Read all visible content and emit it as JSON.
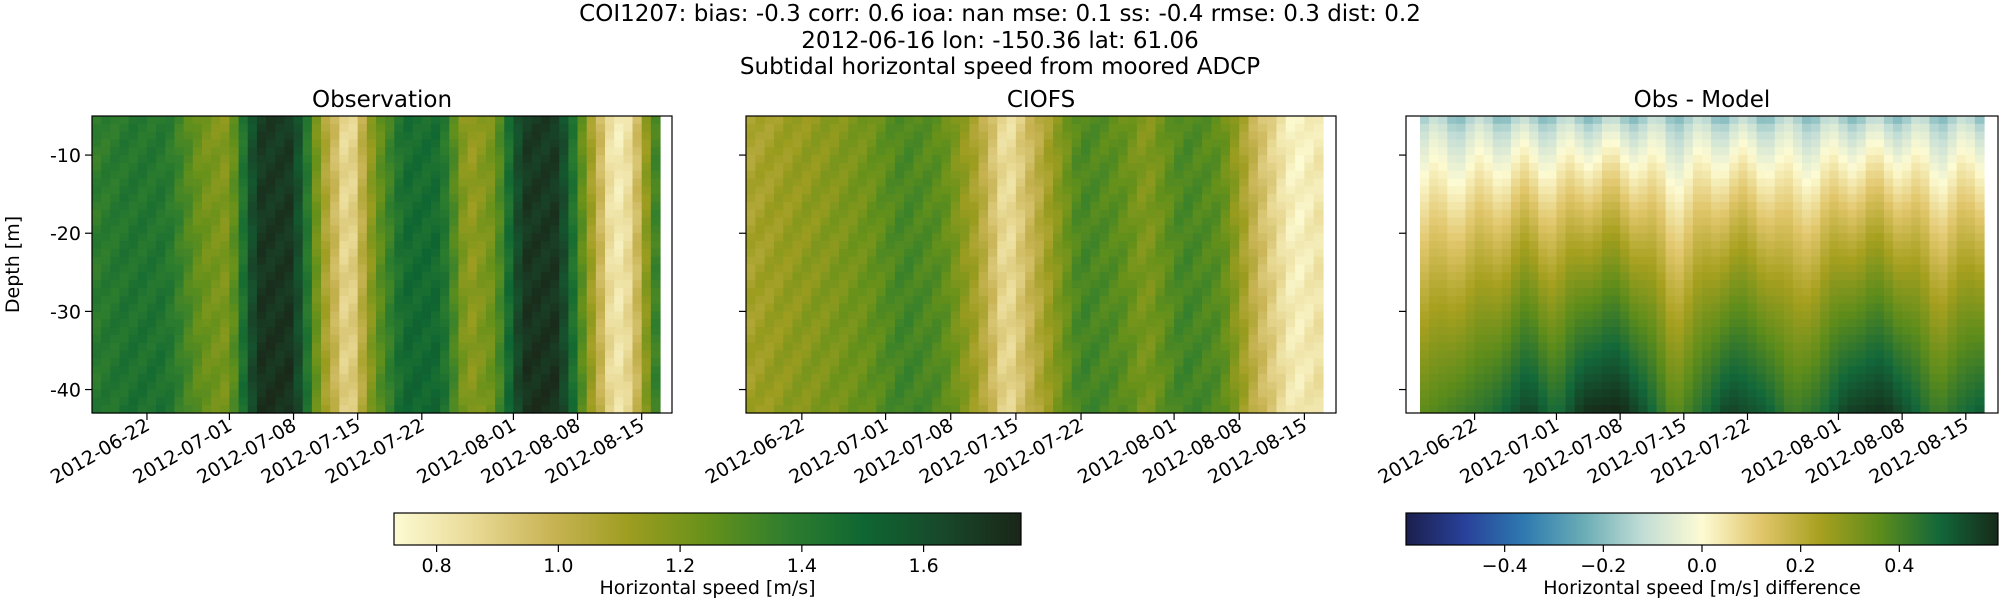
{
  "figure": {
    "title_line1": "COI1207: bias: -0.3  corr: 0.6  ioa: nan  mse: 0.1  ss: -0.4  rmse: 0.3  dist: 0.2",
    "title_line2": "2012-06-16 lon: -150.36 lat: 61.06",
    "title_line3": "Subtidal horizontal speed from moored ADCP"
  },
  "chart_data": [
    {
      "type": "heatmap",
      "title": "Observation",
      "ylabel": "Depth [m]",
      "xlabel": "",
      "y_range": [
        -43,
        -5
      ],
      "y_ticks": [
        -10,
        -20,
        -30,
        -40
      ],
      "x_range": [
        "2012-06-16",
        "2012-08-17"
      ],
      "x_ticks": [
        "2012-06-22",
        "2012-07-01",
        "2012-07-08",
        "2012-07-15",
        "2012-07-22",
        "2012-08-01",
        "2012-08-08",
        "2012-08-15"
      ],
      "colormap": "speed",
      "colorbar": "shared-speed",
      "value_range": [
        0.73,
        1.76
      ],
      "speed_profile_by_date": [
        [
          "2012-06-16",
          1.4
        ],
        [
          "2012-06-20",
          1.45
        ],
        [
          "2012-06-24",
          1.45
        ],
        [
          "2012-06-28",
          1.25
        ],
        [
          "2012-07-01",
          1.2
        ],
        [
          "2012-07-04",
          1.72
        ],
        [
          "2012-07-08",
          1.72
        ],
        [
          "2012-07-11",
          1.15
        ],
        [
          "2012-07-14",
          0.85
        ],
        [
          "2012-07-17",
          1.25
        ],
        [
          "2012-07-20",
          1.5
        ],
        [
          "2012-07-24",
          1.5
        ],
        [
          "2012-07-27",
          1.15
        ],
        [
          "2012-07-30",
          1.25
        ],
        [
          "2012-08-02",
          1.72
        ],
        [
          "2012-08-06",
          1.72
        ],
        [
          "2012-08-09",
          1.2
        ],
        [
          "2012-08-12",
          0.8
        ],
        [
          "2012-08-14",
          0.9
        ],
        [
          "2012-08-17",
          1.45
        ]
      ]
    },
    {
      "type": "heatmap",
      "title": "CIOFS",
      "xlabel": "",
      "ylabel": "",
      "y_range": [
        -43,
        -5
      ],
      "x_range": [
        "2012-06-16",
        "2012-08-17"
      ],
      "x_ticks": [
        "2012-06-22",
        "2012-07-01",
        "2012-07-08",
        "2012-07-15",
        "2012-07-22",
        "2012-08-01",
        "2012-08-08",
        "2012-08-15"
      ],
      "colormap": "speed",
      "colorbar": "shared-speed",
      "value_range": [
        0.73,
        1.76
      ],
      "speed_profile_by_date": [
        [
          "2012-06-16",
          1.1
        ],
        [
          "2012-06-20",
          1.15
        ],
        [
          "2012-06-25",
          1.2
        ],
        [
          "2012-06-29",
          1.25
        ],
        [
          "2012-07-03",
          1.35
        ],
        [
          "2012-07-07",
          1.3
        ],
        [
          "2012-07-11",
          1.1
        ],
        [
          "2012-07-14",
          0.85
        ],
        [
          "2012-07-18",
          1.1
        ],
        [
          "2012-07-22",
          1.35
        ],
        [
          "2012-07-26",
          1.3
        ],
        [
          "2012-07-29",
          1.2
        ],
        [
          "2012-08-02",
          1.35
        ],
        [
          "2012-08-06",
          1.3
        ],
        [
          "2012-08-10",
          1.0
        ],
        [
          "2012-08-14",
          0.78
        ],
        [
          "2012-08-17",
          0.85
        ]
      ]
    },
    {
      "type": "heatmap",
      "title": "Obs - Model",
      "xlabel": "",
      "ylabel": "",
      "y_range": [
        -43,
        -5
      ],
      "x_range": [
        "2012-06-16",
        "2012-08-17"
      ],
      "x_ticks": [
        "2012-06-22",
        "2012-07-01",
        "2012-07-08",
        "2012-07-15",
        "2012-07-22",
        "2012-08-01",
        "2012-08-08",
        "2012-08-15"
      ],
      "colormap": "diverging",
      "colorbar": "difference",
      "value_range": [
        -0.6,
        0.6
      ],
      "surface_difference": -0.15,
      "bottom_difference_by_date": [
        [
          "2012-06-16",
          0.35
        ],
        [
          "2012-06-20",
          0.4
        ],
        [
          "2012-06-24",
          0.45
        ],
        [
          "2012-06-28",
          0.55
        ],
        [
          "2012-07-01",
          0.45
        ],
        [
          "2012-07-04",
          0.58
        ],
        [
          "2012-07-08",
          0.6
        ],
        [
          "2012-07-11",
          0.5
        ],
        [
          "2012-07-14",
          0.35
        ],
        [
          "2012-07-17",
          0.45
        ],
        [
          "2012-07-20",
          0.55
        ],
        [
          "2012-07-24",
          0.5
        ],
        [
          "2012-07-27",
          0.4
        ],
        [
          "2012-07-30",
          0.45
        ],
        [
          "2012-08-02",
          0.55
        ],
        [
          "2012-08-06",
          0.58
        ],
        [
          "2012-08-09",
          0.5
        ],
        [
          "2012-08-12",
          0.4
        ],
        [
          "2012-08-14",
          0.45
        ],
        [
          "2012-08-17",
          0.5
        ]
      ]
    }
  ],
  "colorbars": [
    {
      "id": "shared-speed",
      "label": "Horizontal speed [m/s]",
      "colormap": "speed",
      "range": [
        0.73,
        1.76
      ],
      "ticks": [
        "0.8",
        "1.0",
        "1.2",
        "1.4",
        "1.6"
      ],
      "tick_values": [
        0.8,
        1.0,
        1.2,
        1.4,
        1.6
      ]
    },
    {
      "id": "difference",
      "label": "Horizontal speed [m/s] difference",
      "colormap": "diverging",
      "range": [
        -0.6,
        0.6
      ],
      "ticks": [
        "−0.4",
        "−0.2",
        "0.0",
        "0.2",
        "0.4"
      ],
      "tick_values": [
        -0.4,
        -0.2,
        0.0,
        0.2,
        0.4
      ]
    }
  ],
  "colormaps": {
    "speed": [
      "#fdfbd3",
      "#e9da96",
      "#c9b455",
      "#9d9d20",
      "#66911a",
      "#2f7e2e",
      "#0f6632",
      "#18482a",
      "#1a2618"
    ],
    "diverging": [
      "#1b1f4d",
      "#29419a",
      "#2e7ab0",
      "#6aadb5",
      "#c2ddd6",
      "#fdfbd3",
      "#e1c66b",
      "#a7a01f",
      "#5d8c1b",
      "#13683a",
      "#162a19"
    ]
  }
}
